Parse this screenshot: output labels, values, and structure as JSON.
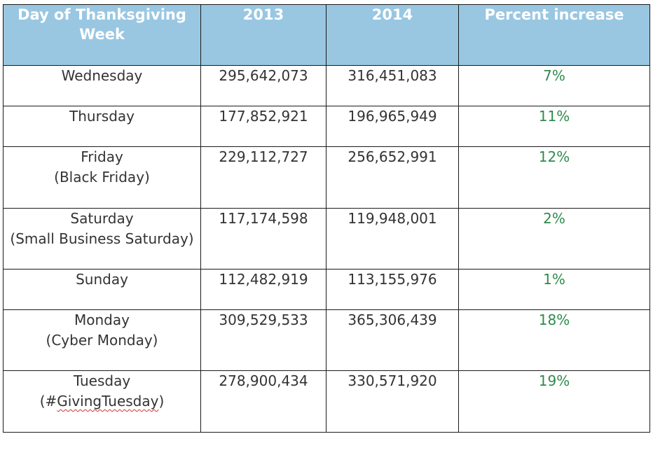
{
  "chart_data": {
    "type": "table",
    "columns": [
      "Day of Thanksgiving Week",
      "2013",
      "2014",
      "Percent increase"
    ],
    "rows": [
      {
        "day": "Wednesday",
        "sub": "",
        "y2013": "295,642,073",
        "y2014": "316,451,083",
        "pct": "7%"
      },
      {
        "day": "Thursday",
        "sub": "",
        "y2013": "177,852,921",
        "y2014": "196,965,949",
        "pct": "11%"
      },
      {
        "day": "Friday",
        "sub": "(Black Friday)",
        "y2013": "229,112,727",
        "y2014": "256,652,991",
        "pct": "12%"
      },
      {
        "day": "Saturday",
        "sub": "(Small Business Saturday)",
        "y2013": "117,174,598",
        "y2014": "119,948,001",
        "pct": "2%"
      },
      {
        "day": "Sunday",
        "sub": "",
        "y2013": "112,482,919",
        "y2014": "113,155,976",
        "pct": "1%"
      },
      {
        "day": "Monday",
        "sub": "(Cyber Monday)",
        "y2013": "309,529,533",
        "y2014": "365,306,439",
        "pct": "18%"
      },
      {
        "day": "Tuesday",
        "sub": "(#GivingTuesday)",
        "y2013": "278,900,434",
        "y2014": "330,571,920",
        "pct": "19%"
      }
    ]
  },
  "colors": {
    "header_bg": "#99c7e2",
    "header_text": "#ffffff",
    "cell_text": "#333333",
    "percent_text": "#2e8b4b",
    "spellcheck_underline": "#d23232"
  }
}
